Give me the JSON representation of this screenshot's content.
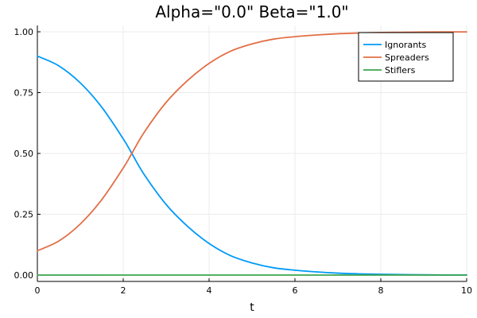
{
  "chart_data": {
    "type": "line",
    "title": "Alpha=\"0.0\"  Beta=\"1.0\"",
    "xlabel": "t",
    "ylabel": "",
    "xlim": [
      0,
      10
    ],
    "ylim": [
      0,
      1
    ],
    "x_ticks": [
      0,
      2,
      4,
      6,
      8,
      10
    ],
    "x_tick_labels": [
      "0",
      "2",
      "4",
      "6",
      "8",
      "10"
    ],
    "y_ticks": [
      0,
      0.25,
      0.5,
      0.75,
      1.0
    ],
    "y_tick_labels": [
      "0.00",
      "0.25",
      "0.50",
      "0.75",
      "1.00"
    ],
    "grid": true,
    "legend_position": "top-right",
    "x": [
      0,
      0.5,
      1,
      1.5,
      2,
      2.2,
      2.5,
      3,
      3.5,
      4,
      4.5,
      5,
      5.5,
      6,
      6.5,
      7,
      7.5,
      8,
      8.5,
      9,
      9.5,
      10
    ],
    "series": [
      {
        "name": "Ignorants",
        "color": "#009af9",
        "values": [
          0.9,
          0.86,
          0.79,
          0.69,
          0.56,
          0.5,
          0.41,
          0.29,
          0.2,
          0.13,
          0.08,
          0.05,
          0.03,
          0.02,
          0.013,
          0.008,
          0.005,
          0.003,
          0.002,
          0.001,
          0.0005,
          0.0003
        ]
      },
      {
        "name": "Spreaders",
        "color": "#e26f46",
        "values": [
          0.1,
          0.14,
          0.21,
          0.31,
          0.44,
          0.5,
          0.59,
          0.71,
          0.8,
          0.87,
          0.92,
          0.95,
          0.97,
          0.98,
          0.987,
          0.992,
          0.995,
          0.997,
          0.998,
          0.999,
          0.9995,
          0.9997
        ]
      },
      {
        "name": "Stiflers",
        "color": "#3da44d",
        "values": [
          0,
          0,
          0,
          0,
          0,
          0,
          0,
          0,
          0,
          0,
          0,
          0,
          0,
          0,
          0,
          0,
          0,
          0,
          0,
          0,
          0,
          0
        ]
      }
    ]
  }
}
